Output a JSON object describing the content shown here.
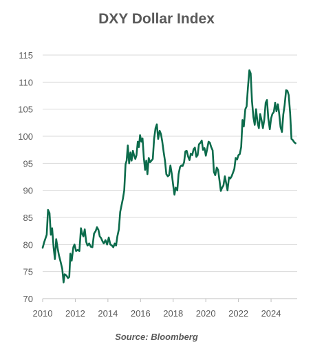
{
  "title": "DXY Dollar Index",
  "source": "Source: Bloomberg",
  "colors": {
    "line": "#0b6b4b",
    "grid": "#d9d9d9",
    "axis": "#bfbfbf",
    "text": "#595959"
  },
  "chart_data": {
    "type": "line",
    "title": "DXY Dollar Index",
    "xlabel": "",
    "ylabel": "",
    "xlim": [
      2010,
      2025.6
    ],
    "ylim": [
      70,
      115
    ],
    "x_ticks": [
      "2010",
      "2012",
      "2014",
      "2016",
      "2018",
      "2020",
      "2022",
      "2024"
    ],
    "y_ticks": [
      "70",
      "75",
      "80",
      "85",
      "90",
      "95",
      "100",
      "105",
      "110",
      "115"
    ],
    "grid": true,
    "legend": "none",
    "series": [
      {
        "values": [
          [
            2010.0,
            79.4
          ],
          [
            2010.1,
            80.5
          ],
          [
            2010.25,
            81.8
          ],
          [
            2010.33,
            86.4
          ],
          [
            2010.42,
            85.8
          ],
          [
            2010.5,
            81.8
          ],
          [
            2010.58,
            83.0
          ],
          [
            2010.67,
            79.5
          ],
          [
            2010.75,
            77.3
          ],
          [
            2010.83,
            81.0
          ],
          [
            2010.92,
            79.3
          ],
          [
            2011.0,
            78.0
          ],
          [
            2011.1,
            76.8
          ],
          [
            2011.2,
            75.5
          ],
          [
            2011.28,
            73.0
          ],
          [
            2011.35,
            74.5
          ],
          [
            2011.45,
            74.3
          ],
          [
            2011.55,
            73.8
          ],
          [
            2011.63,
            74.0
          ],
          [
            2011.7,
            78.3
          ],
          [
            2011.78,
            77.0
          ],
          [
            2011.88,
            79.5
          ],
          [
            2011.95,
            80.0
          ],
          [
            2012.05,
            78.8
          ],
          [
            2012.15,
            79.0
          ],
          [
            2012.25,
            78.8
          ],
          [
            2012.35,
            83.0
          ],
          [
            2012.42,
            82.0
          ],
          [
            2012.5,
            81.5
          ],
          [
            2012.58,
            82.8
          ],
          [
            2012.67,
            80.5
          ],
          [
            2012.75,
            79.8
          ],
          [
            2012.85,
            80.2
          ],
          [
            2012.95,
            79.6
          ],
          [
            2013.05,
            79.5
          ],
          [
            2013.15,
            82.0
          ],
          [
            2013.25,
            82.5
          ],
          [
            2013.33,
            83.2
          ],
          [
            2013.42,
            82.7
          ],
          [
            2013.5,
            81.5
          ],
          [
            2013.58,
            81.2
          ],
          [
            2013.67,
            80.6
          ],
          [
            2013.75,
            80.2
          ],
          [
            2013.85,
            80.8
          ],
          [
            2013.95,
            80.0
          ],
          [
            2014.05,
            81.3
          ],
          [
            2014.15,
            80.0
          ],
          [
            2014.25,
            79.8
          ],
          [
            2014.33,
            79.5
          ],
          [
            2014.42,
            80.2
          ],
          [
            2014.5,
            79.8
          ],
          [
            2014.58,
            81.5
          ],
          [
            2014.67,
            82.8
          ],
          [
            2014.75,
            86.0
          ],
          [
            2014.83,
            87.2
          ],
          [
            2014.92,
            88.5
          ],
          [
            2015.0,
            90.0
          ],
          [
            2015.08,
            94.8
          ],
          [
            2015.15,
            95.5
          ],
          [
            2015.22,
            98.3
          ],
          [
            2015.3,
            95.0
          ],
          [
            2015.38,
            97.0
          ],
          [
            2015.45,
            95.5
          ],
          [
            2015.53,
            97.3
          ],
          [
            2015.6,
            96.5
          ],
          [
            2015.68,
            95.8
          ],
          [
            2015.75,
            96.5
          ],
          [
            2015.83,
            99.0
          ],
          [
            2015.9,
            98.0
          ],
          [
            2015.97,
            100.2
          ],
          [
            2016.05,
            99.0
          ],
          [
            2016.12,
            99.6
          ],
          [
            2016.2,
            96.0
          ],
          [
            2016.28,
            93.8
          ],
          [
            2016.35,
            95.5
          ],
          [
            2016.42,
            93.0
          ],
          [
            2016.5,
            96.0
          ],
          [
            2016.58,
            95.2
          ],
          [
            2016.67,
            95.5
          ],
          [
            2016.75,
            95.8
          ],
          [
            2016.83,
            99.5
          ],
          [
            2016.92,
            101.5
          ],
          [
            2017.0,
            102.2
          ],
          [
            2017.08,
            99.5
          ],
          [
            2017.17,
            101.0
          ],
          [
            2017.25,
            100.4
          ],
          [
            2017.33,
            99.0
          ],
          [
            2017.42,
            97.0
          ],
          [
            2017.5,
            95.4
          ],
          [
            2017.58,
            93.0
          ],
          [
            2017.67,
            92.6
          ],
          [
            2017.75,
            92.8
          ],
          [
            2017.83,
            94.6
          ],
          [
            2017.92,
            93.0
          ],
          [
            2018.0,
            91.0
          ],
          [
            2018.08,
            89.2
          ],
          [
            2018.15,
            90.5
          ],
          [
            2018.25,
            90.0
          ],
          [
            2018.33,
            93.0
          ],
          [
            2018.42,
            94.3
          ],
          [
            2018.5,
            94.6
          ],
          [
            2018.58,
            94.5
          ],
          [
            2018.67,
            95.2
          ],
          [
            2018.75,
            97.2
          ],
          [
            2018.83,
            97.3
          ],
          [
            2018.92,
            96.2
          ],
          [
            2019.0,
            95.6
          ],
          [
            2019.08,
            96.8
          ],
          [
            2019.17,
            96.5
          ],
          [
            2019.25,
            97.6
          ],
          [
            2019.33,
            97.9
          ],
          [
            2019.42,
            96.2
          ],
          [
            2019.5,
            96.5
          ],
          [
            2019.58,
            98.5
          ],
          [
            2019.67,
            98.8
          ],
          [
            2019.75,
            99.2
          ],
          [
            2019.83,
            97.5
          ],
          [
            2019.92,
            97.8
          ],
          [
            2020.0,
            96.4
          ],
          [
            2020.08,
            97.6
          ],
          [
            2020.17,
            99.0
          ],
          [
            2020.25,
            98.8
          ],
          [
            2020.33,
            98.0
          ],
          [
            2020.42,
            97.4
          ],
          [
            2020.5,
            93.4
          ],
          [
            2020.58,
            92.8
          ],
          [
            2020.67,
            94.2
          ],
          [
            2020.75,
            93.8
          ],
          [
            2020.83,
            92.0
          ],
          [
            2020.92,
            89.9
          ],
          [
            2021.0,
            90.5
          ],
          [
            2021.08,
            90.9
          ],
          [
            2021.17,
            92.6
          ],
          [
            2021.25,
            91.3
          ],
          [
            2021.33,
            90.0
          ],
          [
            2021.42,
            92.4
          ],
          [
            2021.5,
            92.2
          ],
          [
            2021.58,
            92.6
          ],
          [
            2021.67,
            93.3
          ],
          [
            2021.75,
            94.0
          ],
          [
            2021.83,
            96.0
          ],
          [
            2021.92,
            95.7
          ],
          [
            2022.0,
            96.5
          ],
          [
            2022.08,
            96.7
          ],
          [
            2022.17,
            98.0
          ],
          [
            2022.25,
            103.0
          ],
          [
            2022.33,
            101.8
          ],
          [
            2022.42,
            105.0
          ],
          [
            2022.5,
            105.5
          ],
          [
            2022.58,
            109.0
          ],
          [
            2022.67,
            112.2
          ],
          [
            2022.75,
            111.6
          ],
          [
            2022.83,
            106.5
          ],
          [
            2022.92,
            103.5
          ],
          [
            2023.0,
            102.1
          ],
          [
            2023.08,
            105.0
          ],
          [
            2023.17,
            102.5
          ],
          [
            2023.25,
            101.5
          ],
          [
            2023.33,
            104.1
          ],
          [
            2023.42,
            102.9
          ],
          [
            2023.5,
            101.5
          ],
          [
            2023.58,
            103.0
          ],
          [
            2023.67,
            106.2
          ],
          [
            2023.75,
            106.7
          ],
          [
            2023.83,
            103.3
          ],
          [
            2023.92,
            101.3
          ],
          [
            2024.0,
            103.3
          ],
          [
            2024.08,
            104.1
          ],
          [
            2024.17,
            104.5
          ],
          [
            2024.25,
            106.2
          ],
          [
            2024.33,
            104.6
          ],
          [
            2024.42,
            105.9
          ],
          [
            2024.5,
            104.1
          ],
          [
            2024.58,
            101.7
          ],
          [
            2024.67,
            100.8
          ],
          [
            2024.75,
            104.0
          ],
          [
            2024.83,
            105.7
          ],
          [
            2024.92,
            108.5
          ],
          [
            2025.0,
            108.4
          ],
          [
            2025.08,
            107.6
          ],
          [
            2025.17,
            104.2
          ],
          [
            2025.25,
            99.5
          ],
          [
            2025.33,
            99.3
          ],
          [
            2025.42,
            98.9
          ],
          [
            2025.5,
            98.7
          ]
        ]
      }
    ]
  }
}
